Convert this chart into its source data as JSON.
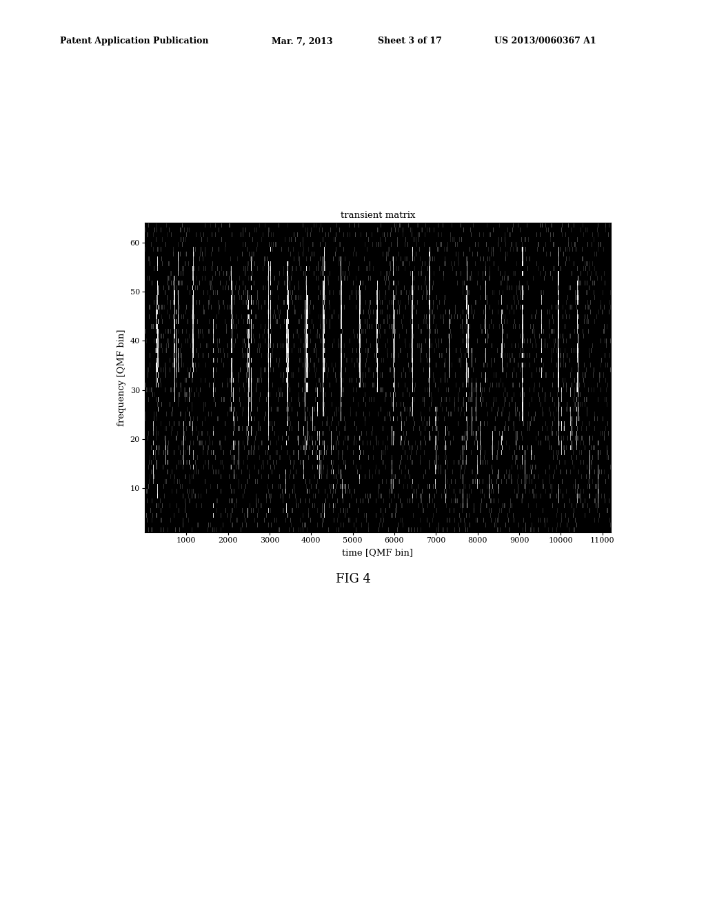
{
  "title": "transient matrix",
  "xlabel": "time [QMF bin]",
  "ylabel": "frequency [QMF bin]",
  "xmin": 0,
  "xmax": 11200,
  "ymin": 1,
  "ymax": 64,
  "xticks": [
    1000,
    2000,
    3000,
    4000,
    5000,
    6000,
    7000,
    8000,
    9000,
    10000,
    11000
  ],
  "yticks": [
    10,
    20,
    30,
    40,
    50,
    60
  ],
  "fig_background": "#ffffff",
  "plot_bg": "#1c1c1c",
  "seed": 42,
  "header_left": "Patent Application Publication",
  "header_mid1": "Mar. 7, 2013",
  "header_mid2": "Sheet 3 of 17",
  "header_right": "US 2013/0060367 A1",
  "fig_label": "FIG 4"
}
